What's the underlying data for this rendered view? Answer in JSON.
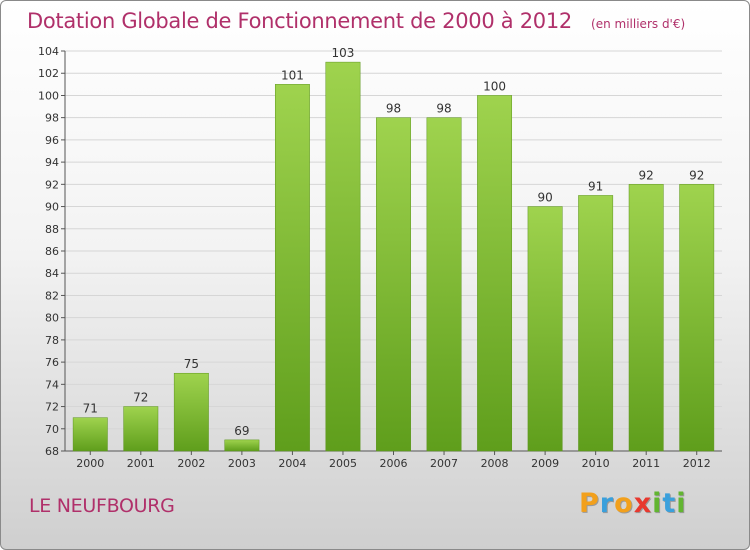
{
  "chart_data": {
    "type": "bar",
    "title": "Dotation Globale de Fonctionnement de 2000 à 2012",
    "subtitle": "(en milliers d'€)",
    "xlabel": "",
    "ylabel": "",
    "categories": [
      "2000",
      "2001",
      "2002",
      "2003",
      "2004",
      "2005",
      "2006",
      "2007",
      "2008",
      "2009",
      "2010",
      "2011",
      "2012"
    ],
    "values": [
      71,
      72,
      75,
      69,
      101,
      103,
      98,
      98,
      100,
      90,
      91,
      92,
      92
    ],
    "data_labels": [
      "71",
      "72",
      "75",
      "69",
      "101",
      "103",
      "98",
      "98",
      "100",
      "90",
      "91",
      "92",
      "92"
    ],
    "ylim": [
      68,
      104
    ],
    "yticks": [
      68,
      70,
      72,
      74,
      76,
      78,
      80,
      82,
      84,
      86,
      88,
      90,
      92,
      94,
      96,
      98,
      100,
      102,
      104
    ],
    "grid": true,
    "legend": "none",
    "bar_color_top": "#9fd34e",
    "bar_color_bottom": "#5f9e1c"
  },
  "footer": {
    "commune": "LE NEUFBOURG",
    "logo_letters": [
      "P",
      "r",
      "o",
      "x",
      "i",
      "t",
      "i"
    ],
    "logo_colors": [
      "#f2a01c",
      "#3aa0dc",
      "#f2a01c",
      "#e8382e",
      "#62b531",
      "#3aa0dc",
      "#62b531"
    ]
  },
  "colors": {
    "title": "#b0306a",
    "grid": "#d6d6d6",
    "axis": "#555555"
  }
}
